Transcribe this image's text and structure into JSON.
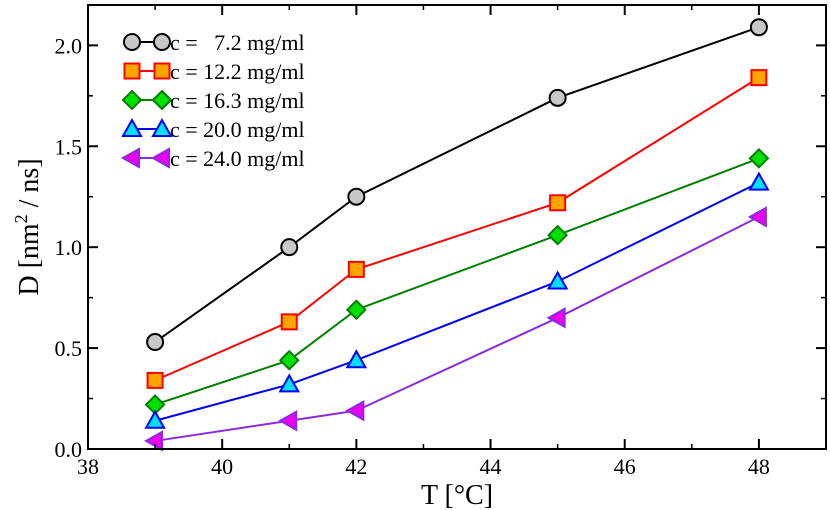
{
  "chart_data": {
    "type": "line",
    "title": "",
    "xlabel": "T [°C]",
    "ylabel_main": "D [nm",
    "ylabel_sup": "2",
    "ylabel_tail": " / ns]",
    "xlim": [
      38,
      49
    ],
    "ylim": [
      0.0,
      2.2
    ],
    "xticks": [
      38,
      40,
      42,
      44,
      46,
      48
    ],
    "xtick_labels": [
      "38",
      "40",
      "42",
      "44",
      "46",
      "48"
    ],
    "yticks": [
      0.0,
      0.5,
      1.0,
      1.5,
      2.0
    ],
    "ytick_labels": [
      "0.0",
      "0.5",
      "1.0",
      "1.5",
      "2.0"
    ],
    "grid": false,
    "legend_position": "top-left",
    "x": [
      39,
      41,
      42,
      45,
      48
    ],
    "series": [
      {
        "name": "c =   7.2 mg/ml",
        "marker": "circle",
        "line_color": "#000000",
        "fill_color": "#c8c8c8",
        "edge_color": "#000000",
        "values": [
          0.53,
          1.0,
          1.25,
          1.74,
          2.09
        ]
      },
      {
        "name": "c = 12.2 mg/ml",
        "marker": "square",
        "line_color": "#ff0000",
        "fill_color": "#ffa500",
        "edge_color": "#ff0000",
        "values": [
          0.34,
          0.63,
          0.89,
          1.22,
          1.84
        ]
      },
      {
        "name": "c = 16.3 mg/ml",
        "marker": "diamond",
        "line_color": "#008000",
        "fill_color": "#00e000",
        "edge_color": "#008000",
        "values": [
          0.22,
          0.44,
          0.69,
          1.06,
          1.44
        ]
      },
      {
        "name": "c = 20.0 mg/ml",
        "marker": "triangle-up",
        "line_color": "#0000ff",
        "fill_color": "#00e0ff",
        "edge_color": "#0000ff",
        "values": [
          0.14,
          0.32,
          0.44,
          0.83,
          1.32
        ]
      },
      {
        "name": "c = 24.0 mg/ml",
        "marker": "triangle-left",
        "line_color": "#8a2be2",
        "fill_color": "#ee00ee",
        "edge_color": "#8a2be2",
        "values": [
          0.04,
          0.14,
          0.19,
          0.65,
          1.15
        ]
      }
    ]
  }
}
